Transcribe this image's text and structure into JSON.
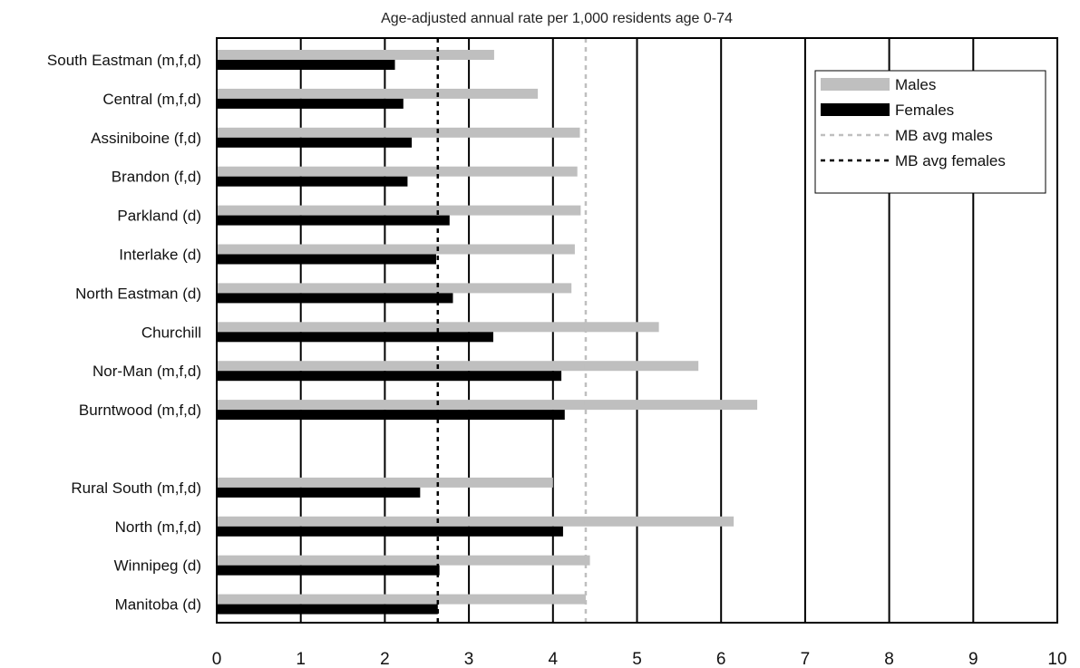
{
  "chart_data": {
    "type": "bar",
    "orientation": "horizontal",
    "title": "Age-adjusted annual rate per 1,000 residents age 0-74",
    "xlabel": "",
    "ylabel": "",
    "xlim": [
      0,
      10
    ],
    "xticks": [
      0,
      1,
      2,
      3,
      4,
      5,
      6,
      7,
      8,
      9,
      10
    ],
    "grid": "vertical",
    "legend_position": "top-right",
    "categories": [
      "South Eastman (m,f,d)",
      "Central (m,f,d)",
      "Assiniboine (f,d)",
      "Brandon (f,d)",
      "Parkland (d)",
      "Interlake (d)",
      "North Eastman (d)",
      "Churchill",
      "Nor-Man (m,f,d)",
      "Burntwood (m,f,d)",
      "",
      "Rural South (m,f,d)",
      "North (m,f,d)",
      "Winnipeg (d)",
      "Manitoba (d)"
    ],
    "series": [
      {
        "name": "Males",
        "color": "#bfbfbf",
        "values": [
          3.3,
          3.82,
          4.32,
          4.29,
          4.33,
          4.26,
          4.22,
          5.26,
          5.73,
          6.43,
          null,
          4.0,
          6.15,
          4.44,
          4.39
        ]
      },
      {
        "name": "Females",
        "color": "#000000",
        "values": [
          2.12,
          2.22,
          2.32,
          2.27,
          2.77,
          2.61,
          2.81,
          3.29,
          4.1,
          4.14,
          null,
          2.42,
          4.12,
          2.65,
          2.63
        ]
      }
    ],
    "reference_lines": [
      {
        "name": "MB avg males",
        "value": 4.39,
        "color": "#bfbfbf",
        "style": "dashed"
      },
      {
        "name": "MB avg females",
        "value": 2.63,
        "color": "#000000",
        "style": "dashed"
      }
    ]
  }
}
